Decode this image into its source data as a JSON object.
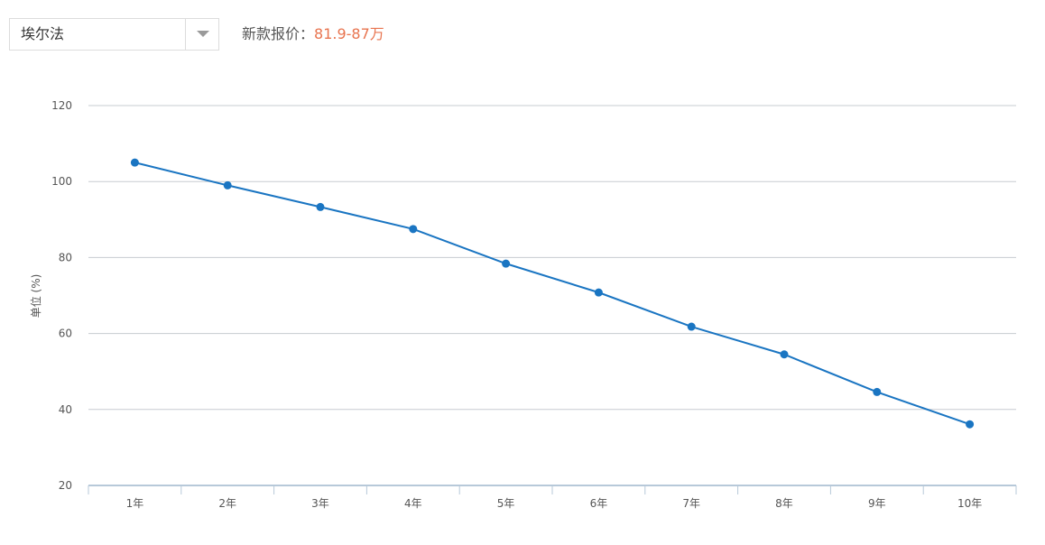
{
  "selector": {
    "value": "埃尔法",
    "arrow_icon": "chevron-down-icon"
  },
  "price": {
    "label": "新款报价：",
    "value": "81.9-87万",
    "value_color": "#e8744f"
  },
  "chart_data": {
    "type": "line",
    "title": "",
    "xlabel": "",
    "ylabel": "单位 (%)",
    "categories": [
      "1年",
      "2年",
      "3年",
      "4年",
      "5年",
      "6年",
      "7年",
      "8年",
      "9年",
      "10年"
    ],
    "series": [
      {
        "values": [
          105,
          99,
          93.3,
          87.5,
          78.4,
          70.8,
          61.8,
          54.5,
          44.6,
          36.1
        ],
        "color": "#1a75c2"
      }
    ],
    "ylim": [
      20,
      120
    ],
    "yticks": [
      20,
      40,
      60,
      80,
      100,
      120
    ],
    "grid": true,
    "legend": "none"
  }
}
